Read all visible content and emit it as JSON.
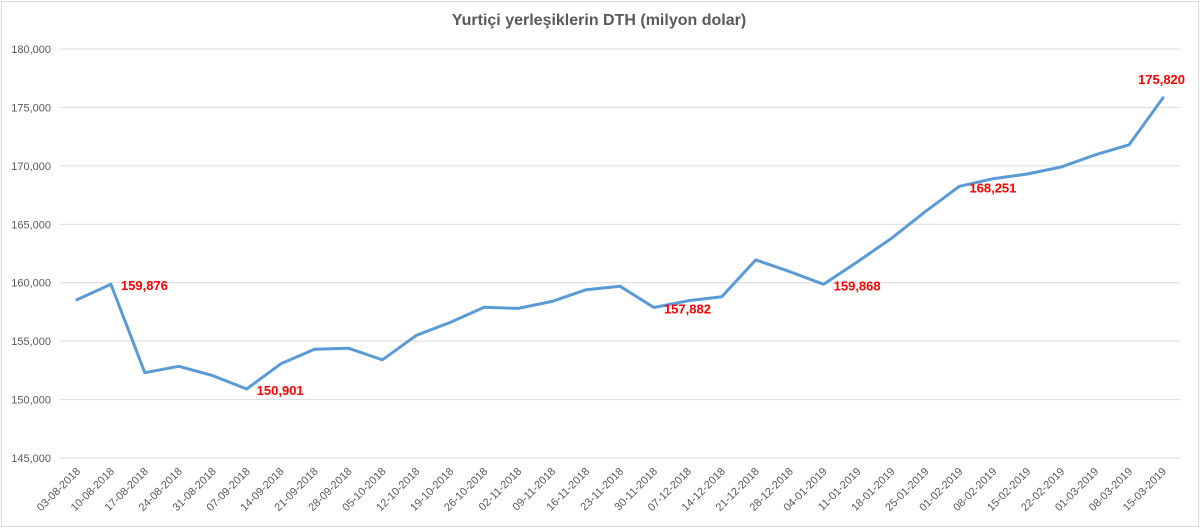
{
  "chart_data": {
    "type": "line",
    "title": "Yurtiçi yerleşiklerin DTH (milyon dolar)",
    "xlabel": "",
    "ylabel": "",
    "ylim": [
      145000,
      180000
    ],
    "yticks": [
      145000,
      150000,
      155000,
      160000,
      165000,
      170000,
      175000,
      180000
    ],
    "ytick_labels": [
      "145,000",
      "150,000",
      "155,000",
      "160,000",
      "165,000",
      "170,000",
      "175,000",
      "180,000"
    ],
    "grid": true,
    "legend": "none",
    "categories": [
      "03-08-2018",
      "10-08-2018",
      "17-08-2018",
      "24-08-2018",
      "31-08-2018",
      "07-09-2018",
      "14-09-2018",
      "21-09-2018",
      "28-09-2018",
      "05-10-2018",
      "12-10-2018",
      "19-10-2018",
      "26-10-2018",
      "02-11-2018",
      "09-11-2018",
      "16-11-2018",
      "23-11-2018",
      "30-11-2018",
      "07-12-2018",
      "14-12-2018",
      "21-12-2018",
      "28-12-2018",
      "04-01-2019",
      "11-01-2019",
      "18-01-2019",
      "25-01-2019",
      "01-02-2019",
      "08-02-2019",
      "15-02-2019",
      "22-02-2019",
      "01-03-2019",
      "08-03-2019",
      "15-03-2019"
    ],
    "series": [
      {
        "color": "#5b9bd5",
        "values": [
          158550,
          159876,
          152300,
          152850,
          152050,
          150901,
          153050,
          154300,
          154400,
          153400,
          155500,
          156600,
          157900,
          157800,
          158400,
          159400,
          159700,
          157882,
          158450,
          158800,
          161950,
          160950,
          159868,
          161800,
          163800,
          166100,
          168251,
          168900,
          169300,
          169900,
          170950,
          171800,
          175820
        ]
      }
    ],
    "data_labels": [
      {
        "index": 1,
        "text": "159,876"
      },
      {
        "index": 5,
        "text": "150,901"
      },
      {
        "index": 17,
        "text": "157,882"
      },
      {
        "index": 22,
        "text": "159,868"
      },
      {
        "index": 26,
        "text": "168,251"
      },
      {
        "index": 32,
        "text": "175,820"
      }
    ],
    "data_label_color": "#ff0000"
  }
}
